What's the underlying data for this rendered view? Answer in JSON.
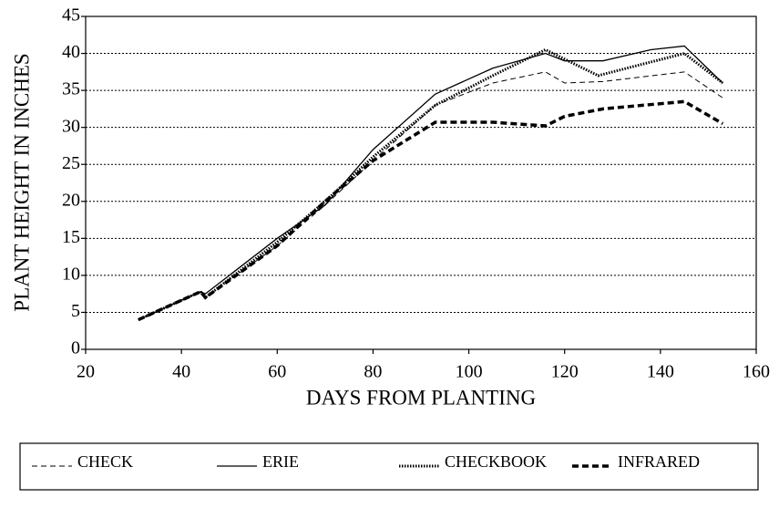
{
  "chart_data": {
    "type": "line",
    "xlabel": "DAYS FROM PLANTING",
    "ylabel": "PLANT HEIGHT IN INCHES",
    "xlim": [
      20,
      160
    ],
    "xticks": [
      20,
      40,
      60,
      80,
      100,
      120,
      140,
      160
    ],
    "ylim": [
      0,
      45
    ],
    "yticks": [
      0,
      5,
      10,
      15,
      20,
      25,
      30,
      35,
      40,
      45
    ],
    "grid": true,
    "series": [
      {
        "name": "CHECK",
        "color": "#000000",
        "line_style": "thin-dashed",
        "x": [
          31,
          44,
          45,
          60,
          70,
          80,
          93,
          105,
          116,
          120,
          128,
          145,
          153
        ],
        "values": [
          4,
          7.8,
          7,
          14,
          19.5,
          25.5,
          33,
          36,
          37.5,
          36,
          36.2,
          37.5,
          34
        ]
      },
      {
        "name": "ERIE",
        "color": "#000000",
        "line_style": "solid",
        "x": [
          31,
          44,
          45,
          50,
          60,
          70,
          80,
          93,
          105,
          116,
          120,
          128,
          138,
          145,
          153
        ],
        "values": [
          4,
          7.8,
          7.5,
          10,
          15,
          19.5,
          27,
          34.5,
          38,
          40,
          39,
          39,
          40.5,
          41,
          36
        ]
      },
      {
        "name": "CHECKBOOK",
        "color": "#000000",
        "line_style": "dotted",
        "x": [
          31,
          44,
          45,
          60,
          70,
          80,
          93,
          105,
          116,
          127,
          145,
          153
        ],
        "values": [
          4,
          7.8,
          7,
          14.5,
          20,
          26,
          33,
          37,
          40.5,
          37,
          40,
          36
        ]
      },
      {
        "name": "INFRARED",
        "color": "#000000",
        "line_style": "bold-dashed",
        "x": [
          31,
          44,
          45,
          60,
          70,
          80,
          93,
          105,
          116,
          120,
          128,
          145,
          153
        ],
        "values": [
          4,
          7.8,
          7,
          14,
          20,
          25.5,
          30.7,
          30.7,
          30.2,
          31.5,
          32.5,
          33.5,
          30.5
        ]
      }
    ]
  }
}
